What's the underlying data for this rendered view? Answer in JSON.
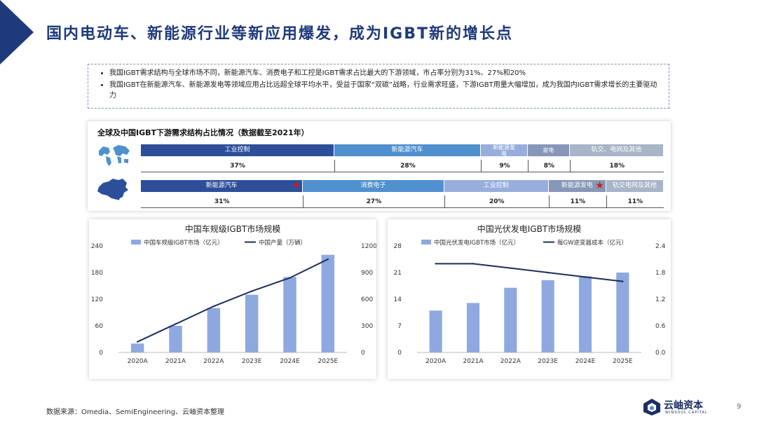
{
  "header": {
    "title": "国内电动车、新能源行业等新应用爆发，成为IGBT新的增长点"
  },
  "bullets": [
    "我国IGBT需求结构与全球市场不同，新能源汽车、消费电子和工控是IGBT需求占比最大的下游领域，市占率分别为31%、27%和20%",
    "我国IGBT在新能源汽车、新能源发电等领域应用占比远超全球平均水平，受益于国家“双碳”战略，行业需求旺盛，下游IGBT用量大幅增加，成为我国内IGBT需求增长的主要驱动力"
  ],
  "structure": {
    "title": "全球及中国IGBT下游需求结构占比情况（数据截至2021年）",
    "global": [
      {
        "label": "工业控制",
        "pct": "37%",
        "share": 37,
        "color": "#2d4f9a"
      },
      {
        "label": "新能源汽车",
        "pct": "28%",
        "share": 28,
        "color": "#4f90cf"
      },
      {
        "label": "新能源发电",
        "pct": "9%",
        "share": 9,
        "color": "#97aedd"
      },
      {
        "label": "家电",
        "pct": "8%",
        "share": 8,
        "color": "#8897b7"
      },
      {
        "label": "轨交、电网及其他",
        "pct": "18%",
        "share": 18,
        "color": "#a8b4c8"
      }
    ],
    "china": [
      {
        "label": "新能源汽车",
        "pct": "31%",
        "share": 31,
        "color": "#2d4f9a",
        "star": true
      },
      {
        "label": "消费电子",
        "pct": "27%",
        "share": 27,
        "color": "#4f90cf",
        "star": false
      },
      {
        "label": "工业控制",
        "pct": "20%",
        "share": 20,
        "color": "#97aedd",
        "star": false
      },
      {
        "label": "新能源发电",
        "pct": "11%",
        "share": 11,
        "color": "#8897b7",
        "star": true
      },
      {
        "label": "轨交电网及其他",
        "pct": "11%",
        "share": 11,
        "color": "#a8b4c8",
        "star": false
      }
    ]
  },
  "chart_data": [
    {
      "type": "bar",
      "title": "中国车规级IGBT市场规模",
      "categories": [
        "2020A",
        "2021A",
        "2022A",
        "2023E",
        "2024E",
        "2025E"
      ],
      "series": [
        {
          "name": "中国车规级IGBT市场（亿元）",
          "type": "bar",
          "axis": "left",
          "values": [
            20,
            60,
            100,
            130,
            170,
            220
          ],
          "color": "#8fa9e0"
        },
        {
          "name": "中国产量（万辆）",
          "type": "line",
          "axis": "right",
          "values": [
            120,
            320,
            520,
            690,
            840,
            1050
          ],
          "color": "#1b2f5e"
        }
      ],
      "ylim": [
        0,
        240
      ],
      "yticks": [
        0,
        60,
        120,
        180,
        240
      ],
      "y2lim": [
        0,
        1200
      ],
      "y2ticks": [
        0,
        300,
        600,
        900,
        1200
      ],
      "legend": "top"
    },
    {
      "type": "bar",
      "title": "中国光伏发电IGBT市场规模",
      "categories": [
        "2020A",
        "2021A",
        "2022A",
        "2023E",
        "2024E",
        "2025E"
      ],
      "series": [
        {
          "name": "中国光伏发电IGBT市场（亿元）",
          "type": "bar",
          "axis": "left",
          "values": [
            11,
            13,
            17,
            19,
            20,
            21
          ],
          "color": "#8fa9e0"
        },
        {
          "name": "每GW逆变器成本（亿元）",
          "type": "line",
          "axis": "right",
          "values": [
            2.0,
            2.0,
            1.9,
            1.8,
            1.7,
            1.6
          ],
          "color": "#1b2f5e"
        }
      ],
      "ylim": [
        0,
        28
      ],
      "yticks": [
        0,
        7,
        14,
        21,
        28
      ],
      "y2lim": [
        0,
        2.4
      ],
      "y2ticks": [
        "0.0",
        "0.6",
        "1.2",
        "1.8",
        "2.4"
      ],
      "legend": "top"
    }
  ],
  "footer": {
    "source": "数据来源：Omedia、SemiEngineering、云岫资本整理",
    "logo_text": "云岫资本",
    "logo_sub": "WINSOUL CAPITAL",
    "page": "9"
  }
}
